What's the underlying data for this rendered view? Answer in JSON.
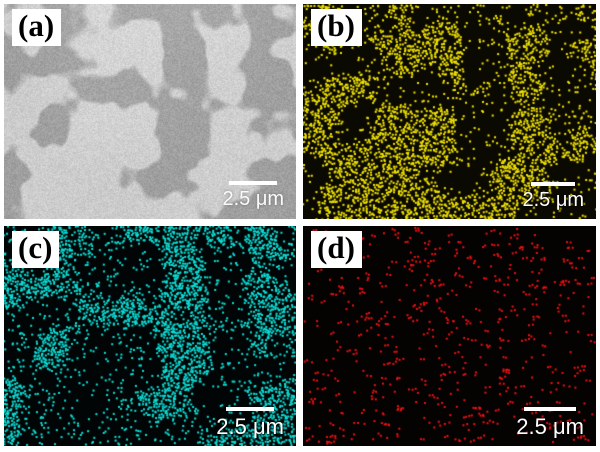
{
  "figure": {
    "kind": "sem-and-eds-elemental-maps",
    "panels": [
      {
        "id": "a",
        "label": "(a)",
        "kind": "sem-micrograph",
        "scale_bar_label": "2.5 μm",
        "phase_light_gray": "#cdcdcd",
        "phase_dark_gray": "#a3a3a3"
      },
      {
        "id": "b",
        "label": "(b)",
        "kind": "eds-dot-map",
        "scale_bar_label": "2.5 μm",
        "dot_color": "#f2e400",
        "background": "#0b0a02",
        "distribution": "clustered"
      },
      {
        "id": "c",
        "label": "(c)",
        "kind": "eds-dot-map",
        "scale_bar_label": "2.5 μm",
        "dot_color": "#0ce2da",
        "background": "#020505",
        "distribution": "clustered-dense"
      },
      {
        "id": "d",
        "label": "(d)",
        "kind": "eds-dot-map",
        "scale_bar_label": "2.5 μm",
        "dot_color": "#ef1212",
        "background": "#050202",
        "distribution": "sparse-uniform"
      }
    ]
  }
}
